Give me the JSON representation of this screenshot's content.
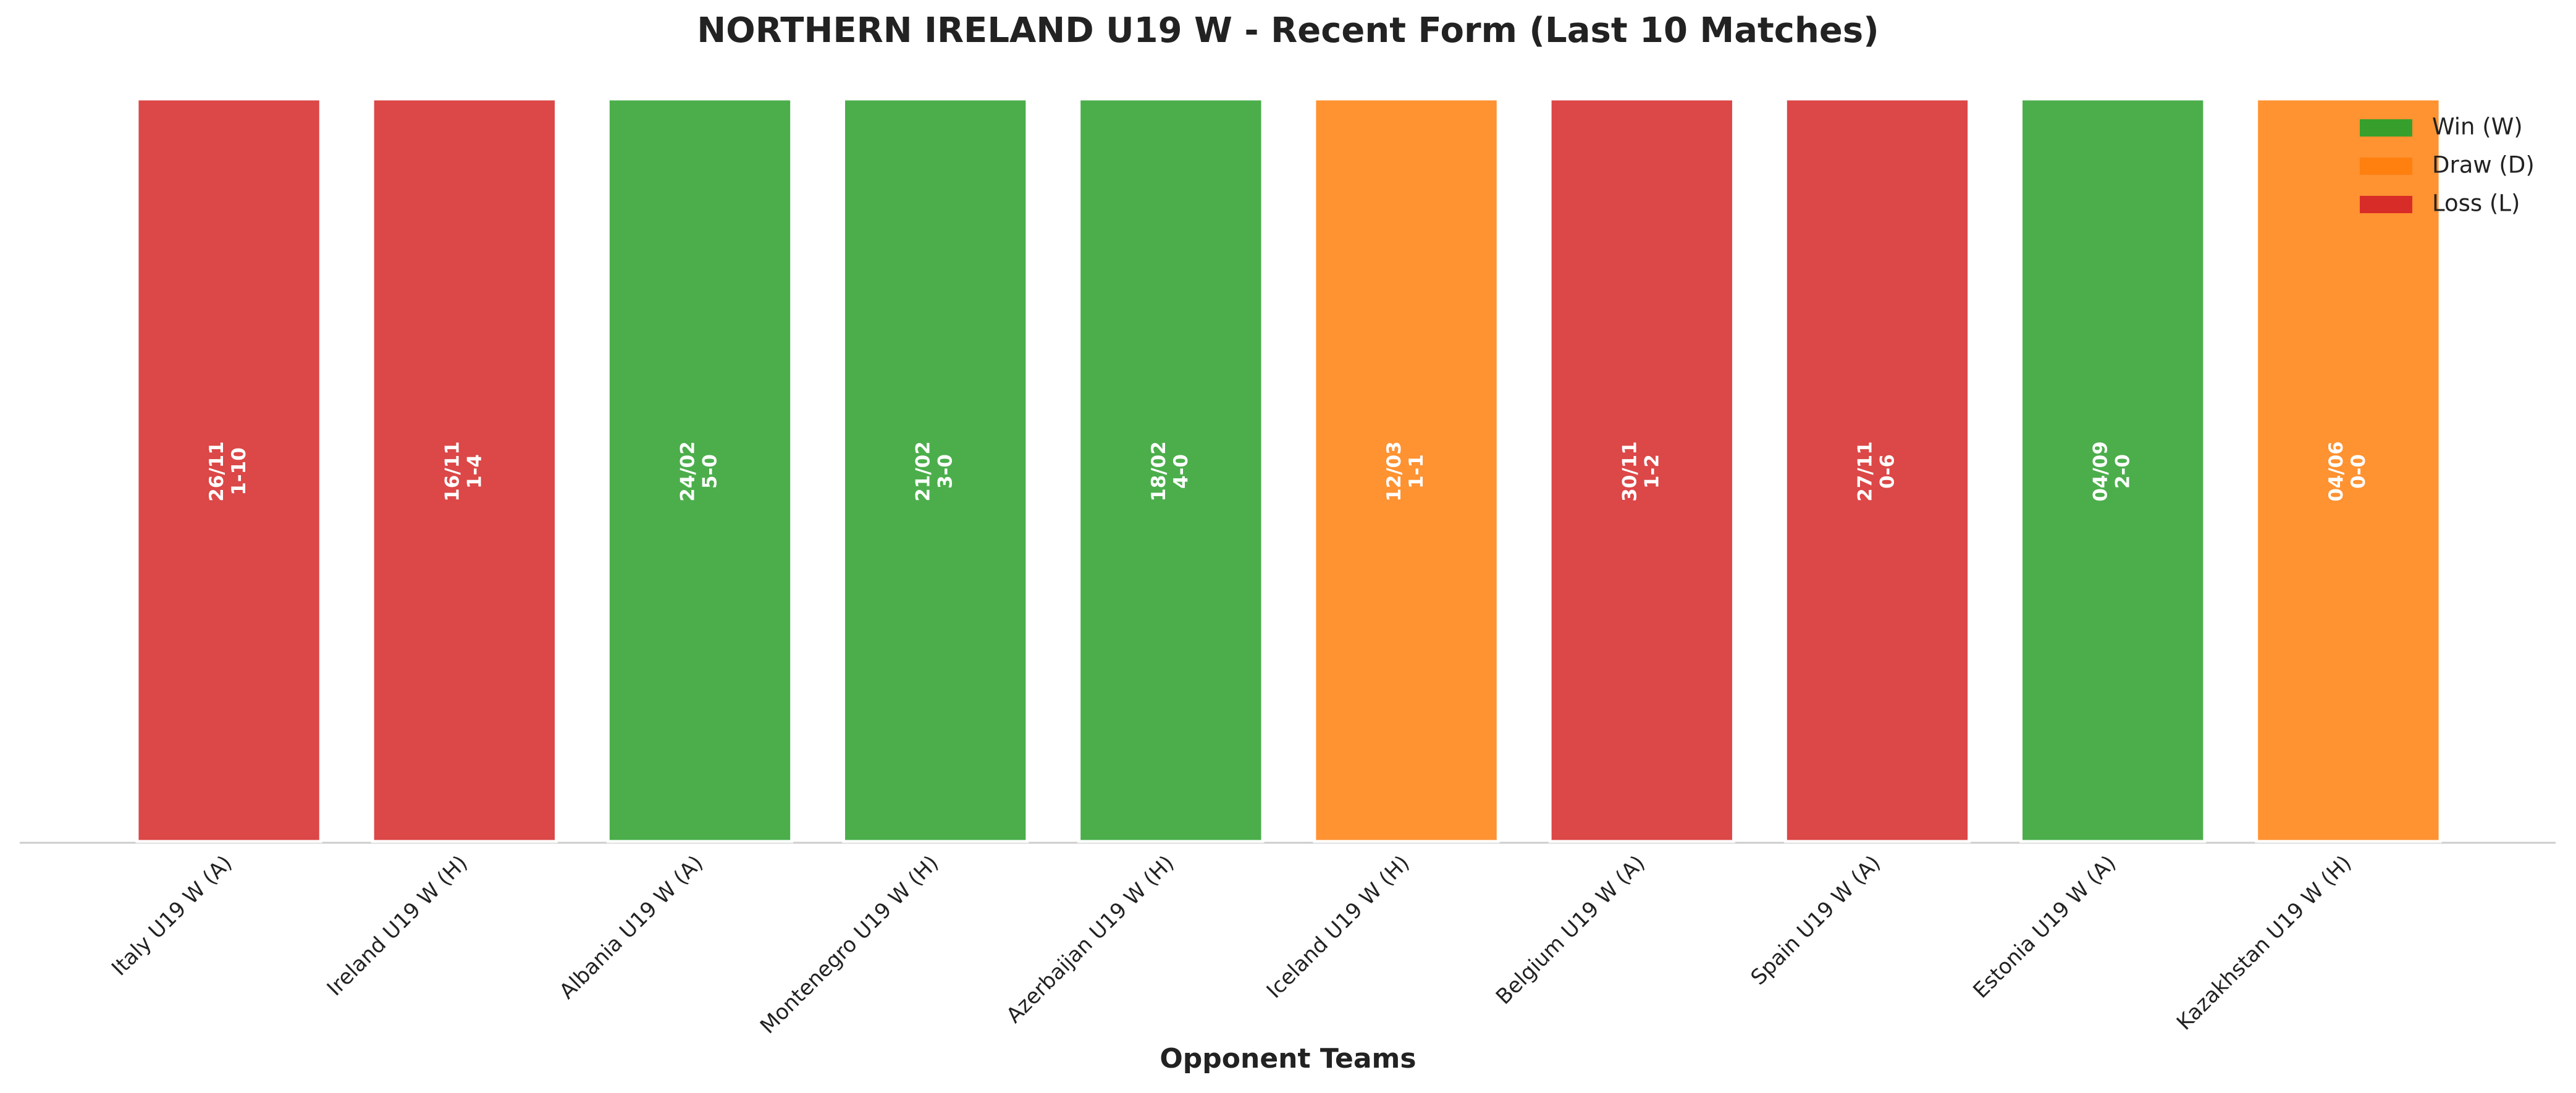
{
  "chart_data": {
    "type": "bar",
    "title": "NORTHERN IRELAND U19 W - Recent Form (Last 10 Matches)",
    "x_label": "Opponent Teams",
    "categories": [
      "Italy U19 W (A)",
      "Ireland U19 W (H)",
      "Albania U19 W (A)",
      "Montenegro U19 W (H)",
      "Azerbaijan U19 W (H)",
      "Iceland U19 W (H)",
      "Belgium U19 W (A)",
      "Spain U19 W (A)",
      "Estonia U19 W (A)",
      "Kazakhstan U19 W (H)"
    ],
    "dates": [
      "26/11",
      "16/11",
      "24/02",
      "21/02",
      "18/02",
      "12/03",
      "30/11",
      "27/11",
      "04/09",
      "04/06"
    ],
    "scores": [
      "1-10",
      "1-4",
      "5-0",
      "3-0",
      "4-0",
      "1-1",
      "1-2",
      "0-6",
      "2-0",
      "0-0"
    ],
    "series": [
      {
        "name": "Win (W)",
        "color": "#2ca02c",
        "values": [
          null,
          null,
          1,
          1,
          1,
          null,
          null,
          null,
          1,
          null
        ]
      },
      {
        "name": "Draw (D)",
        "color": "#ff7f0e",
        "values": [
          null,
          null,
          null,
          null,
          null,
          1,
          null,
          null,
          null,
          1
        ]
      },
      {
        "name": "Loss (L)",
        "color": "#d62728",
        "values": [
          1,
          1,
          null,
          null,
          null,
          null,
          1,
          1,
          null,
          null
        ]
      }
    ],
    "ylim": [
      0,
      1
    ],
    "legend": "upper right"
  }
}
